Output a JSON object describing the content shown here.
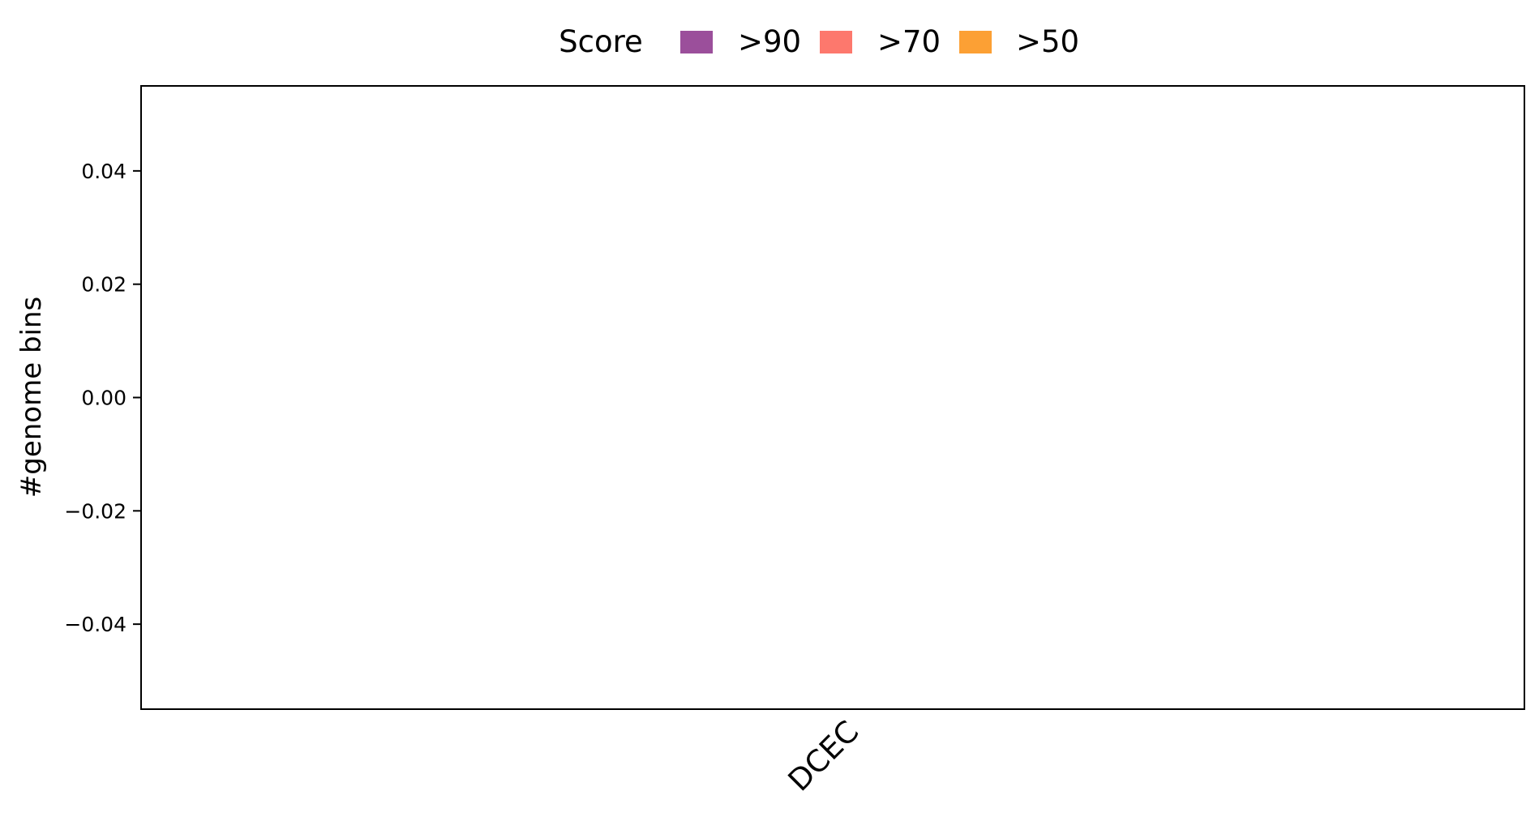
{
  "chart_data": {
    "type": "bar",
    "title": "",
    "xlabel": "",
    "ylabel": "#genome bins",
    "categories": [
      "DCEC"
    ],
    "series": [
      {
        "name": ">90",
        "values": [
          0
        ],
        "color": "#9b4f9b"
      },
      {
        "name": ">70",
        "values": [
          0
        ],
        "color": "#fd786d"
      },
      {
        "name": ">50",
        "values": [
          0
        ],
        "color": "#fca034"
      }
    ],
    "ylim": [
      -0.055,
      0.055
    ],
    "yticks": [
      {
        "value": 0.04,
        "label": "0.04"
      },
      {
        "value": 0.02,
        "label": "0.02"
      },
      {
        "value": 0.0,
        "label": "0.00"
      },
      {
        "value": -0.02,
        "label": "−0.02"
      },
      {
        "value": -0.04,
        "label": "−0.04"
      }
    ],
    "legend": {
      "title": "Score",
      "placement": "top-center"
    },
    "grid": false
  }
}
